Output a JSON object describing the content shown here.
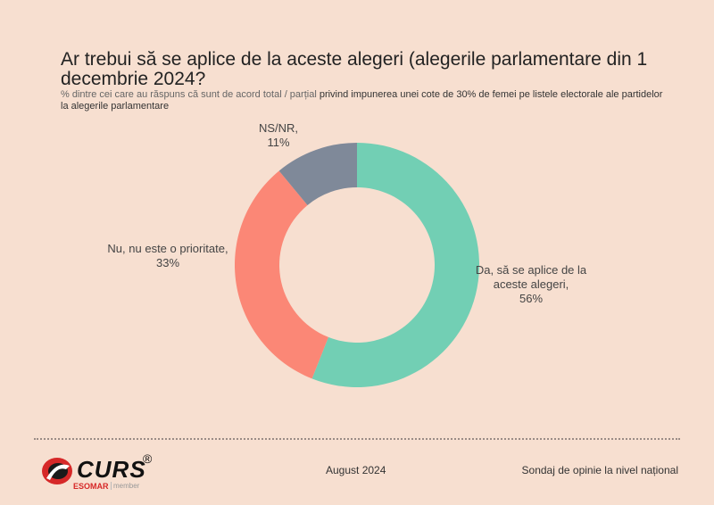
{
  "header": {
    "title": "Ar trebui să se aplice de la aceste alegeri (alegerile parlamentare din 1 decembrie 2024?",
    "subtitle_part1": "% dintre cei care au răspuns că sunt de acord total / parțial",
    "subtitle_part2": " privind impunerea unei cote de 30% de femei pe listele electorale ale partidelor la alegerile parlamentare"
  },
  "chart_data": {
    "type": "pie",
    "donut": true,
    "slices": [
      {
        "label_lines": [
          "Da, să se aplice de la",
          "aceste alegeri,",
          "56%"
        ],
        "category": "Da, să se aplice de la aceste alegeri",
        "value": 56,
        "color": "#72cfb4"
      },
      {
        "label_lines": [
          "Nu, nu este o prioritate,",
          "33%"
        ],
        "category": "Nu, nu este o prioritate",
        "value": 33,
        "color": "#fb8776"
      },
      {
        "label_lines": [
          "NS/NR,",
          "11%"
        ],
        "category": "NS/NR",
        "value": 11,
        "color": "#7f8999"
      }
    ]
  },
  "footer": {
    "logo_text": "CURS",
    "logo_reg": "®",
    "logo_esomar": "ESOMAR",
    "logo_member": "member",
    "date": "August 2024",
    "note": "Sondaj de opinie la nivel național"
  }
}
